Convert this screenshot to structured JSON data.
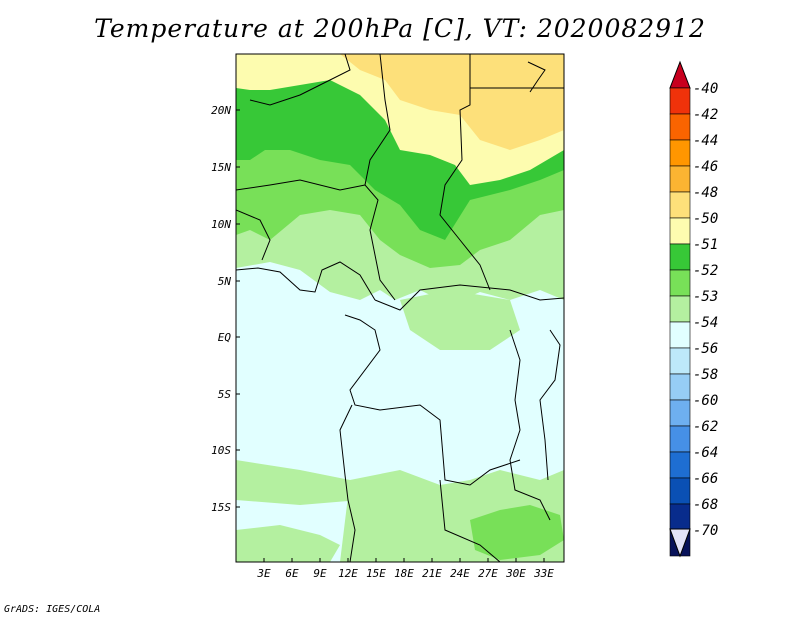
{
  "title": "Temperature at 200hPa [C], VT: 2020082912",
  "credit": "GrADS: IGES/COLA",
  "y_axis_labels": [
    "20N",
    "15N",
    "10N",
    "5N",
    "EQ",
    "5S",
    "10S",
    "15S"
  ],
  "x_axis_labels": [
    "3E",
    "6E",
    "9E",
    "12E",
    "15E",
    "18E",
    "21E",
    "24E",
    "27E",
    "30E",
    "33E"
  ],
  "colorbar": {
    "labels": [
      "-40",
      "-42",
      "-44",
      "-46",
      "-48",
      "-50",
      "-51",
      "-52",
      "-53",
      "-54",
      "-56",
      "-58",
      "-60",
      "-62",
      "-64",
      "-66",
      "-68",
      "-70"
    ],
    "colors": [
      "#c8001e",
      "#f0320a",
      "#fa6400",
      "#ff9600",
      "#fbb432",
      "#fde07a",
      "#fdfcaf",
      "#37c837",
      "#78e058",
      "#b4f0a0",
      "#e1ffff",
      "#bde9fa",
      "#96cdf5",
      "#6eaff0",
      "#4690e6",
      "#1e6ed2",
      "#0a50b4",
      "#082c8c",
      "#08125a",
      "#e2e2f8"
    ]
  },
  "map_fields": {
    "background": "#e1ffff",
    "warm_region": "#fde07a",
    "pale_band": "#fdfcaf",
    "green_dark": "#37c837",
    "green_mid": "#78e058",
    "green_light": "#b4f0a0"
  }
}
